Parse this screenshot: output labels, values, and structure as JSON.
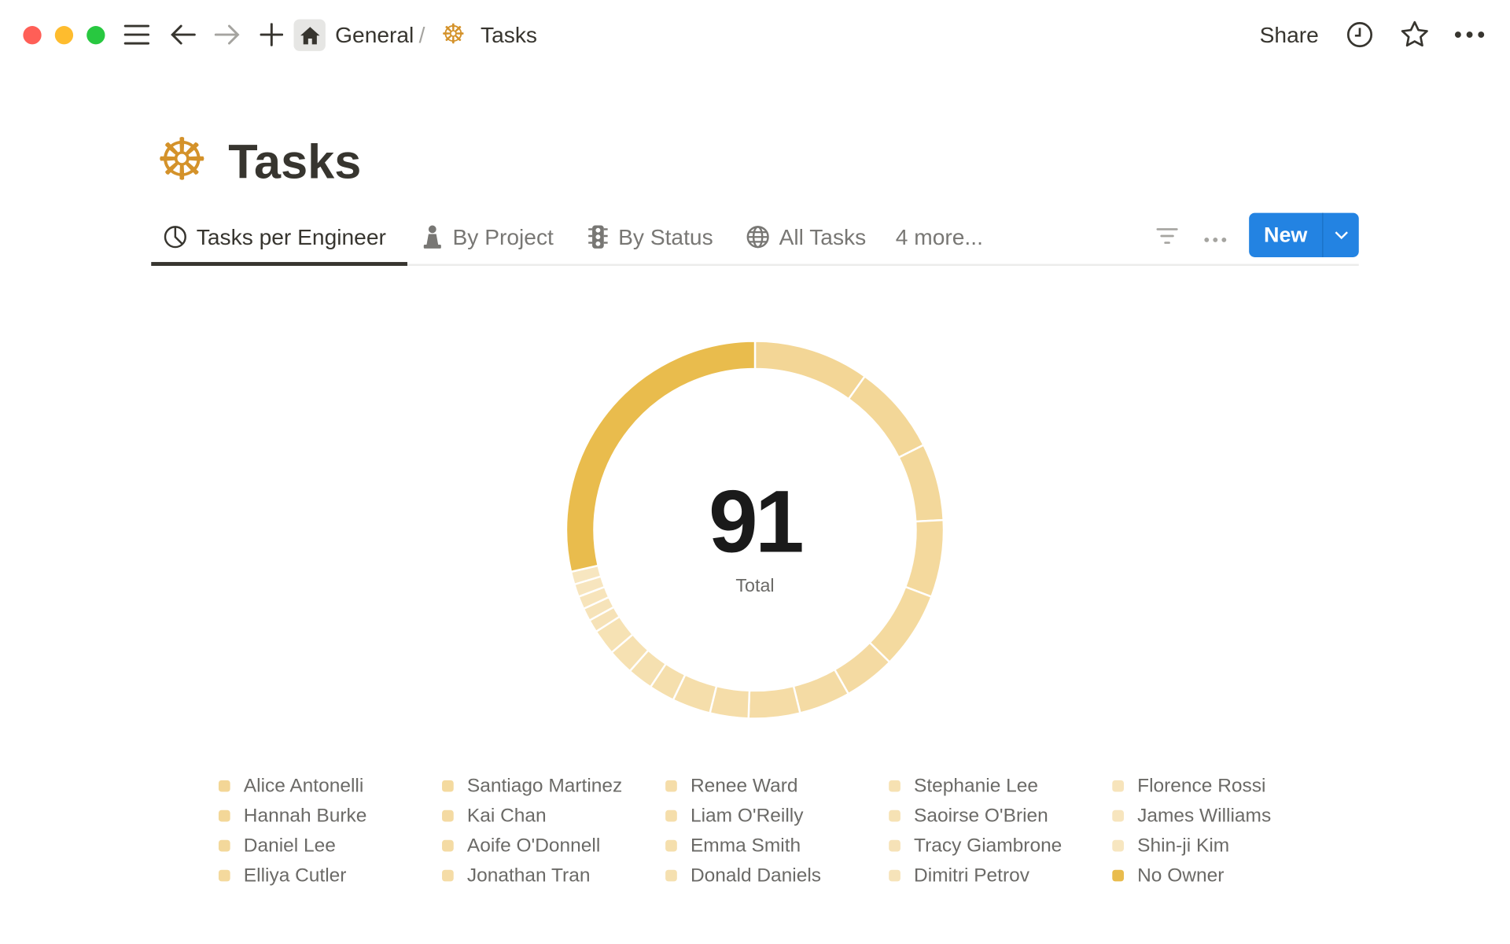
{
  "window": {
    "traffic_lights": {
      "close": "#FF5F57",
      "minimize": "#FEBC2E",
      "zoom": "#28C840"
    }
  },
  "topbar": {
    "breadcrumb": [
      {
        "label": "General",
        "icon": "home-icon"
      },
      {
        "label": "Tasks",
        "icon": "ship-wheel-icon"
      }
    ],
    "separator": "/",
    "share_label": "Share"
  },
  "page": {
    "title": "Tasks",
    "icon": "ship-wheel-icon",
    "icon_color": "#D4922A"
  },
  "tabs": [
    {
      "label": "Tasks per Engineer",
      "icon": "pie-chart-icon",
      "active": true
    },
    {
      "label": "By Project",
      "icon": "chess-pawn-icon",
      "active": false
    },
    {
      "label": "By Status",
      "icon": "traffic-light-icon",
      "active": false
    },
    {
      "label": "All Tasks",
      "icon": "globe-icon",
      "active": false
    },
    {
      "label": "4 more...",
      "active": false
    }
  ],
  "toolbar": {
    "new_label": "New",
    "accent": "#2383E2"
  },
  "chart_data": {
    "type": "pie",
    "variant": "donut",
    "center_value": "91",
    "center_label": "Total",
    "legend_position": "bottom",
    "categories": [
      "Alice Antonelli",
      "Hannah Burke",
      "Daniel Lee",
      "Elliya Cutler",
      "Santiago Martinez",
      "Kai Chan",
      "Aoife O'Donnell",
      "Jonathan Tran",
      "Renee Ward",
      "Liam O'Reilly",
      "Emma Smith",
      "Donald Daniels",
      "Stephanie Lee",
      "Saoirse O'Brien",
      "Tracy Giambrone",
      "Dimitri Petrov",
      "Florence Rossi",
      "James Williams",
      "Shin-ji Kim",
      "No Owner"
    ],
    "values": [
      9,
      7,
      6,
      6,
      6,
      4,
      4,
      4,
      3,
      3,
      2,
      2,
      2,
      2,
      1,
      1,
      1,
      1,
      1,
      26
    ],
    "colors": {
      "engineers_start": "#F3D696",
      "engineers_end": "#F7E6C0",
      "no_owner": "#E9BC4D"
    }
  }
}
